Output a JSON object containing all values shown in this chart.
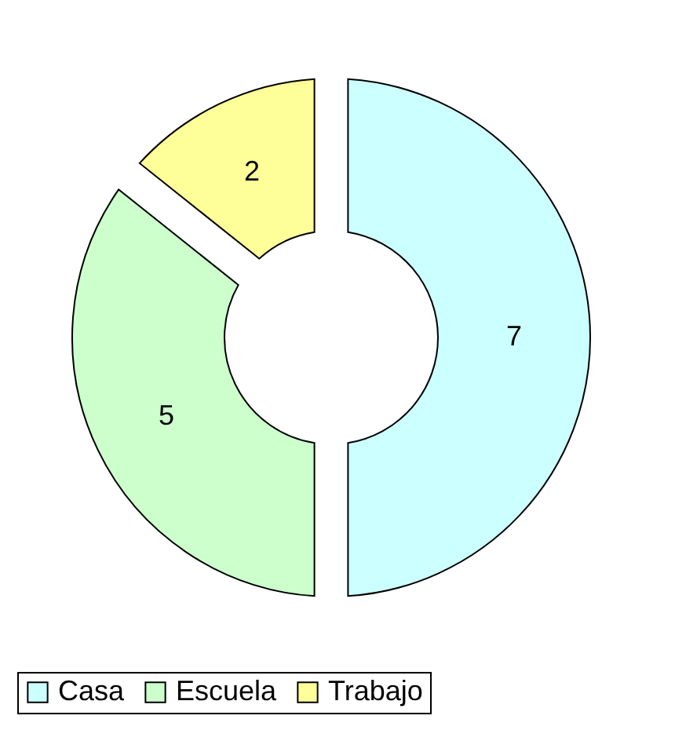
{
  "chart_data": {
    "type": "donut",
    "categories": [
      "Casa",
      "Escuela",
      "Trabajo"
    ],
    "values": [
      7,
      5,
      2
    ],
    "colors": [
      "#ccffff",
      "#ccffcc",
      "#ffff99"
    ],
    "data_labels": true,
    "legend": "bottom"
  }
}
